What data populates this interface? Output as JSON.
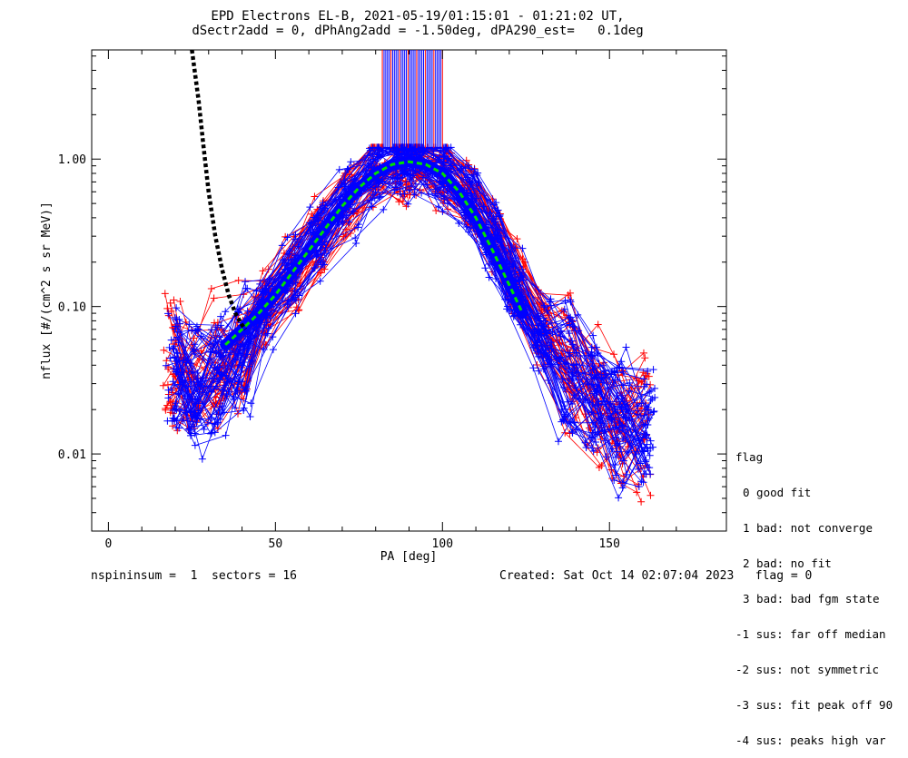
{
  "title_line1": "EPD Electrons EL-B, 2021-05-19/01:15:01 - 01:21:02 UT,",
  "title_line2": "dSectr2add = 0, dPhAng2add = -1.50deg, dPA290_est=   0.1deg",
  "footer": {
    "left": "nspininsum =  1  sectors = 16",
    "right": "Created: Sat Oct 14 02:07:04 2023   flag = 0"
  },
  "legend": {
    "title": "flag",
    "items": [
      "0 good fit",
      "1 bad: not converge",
      "2 bad: no fit",
      "3 bad: bad fgm state",
      "-1 sus: far off median",
      "-2 sus: not symmetric",
      "-3 sus: fit peak off 90",
      "-4 sus: peaks high var"
    ]
  },
  "colors": {
    "red_series": "#ff0000",
    "blue_series": "#0000ff",
    "fit_curve": "#00e000",
    "loss_cone": "#000000"
  },
  "chart_data": {
    "type": "line",
    "xlabel": "PA [deg]",
    "ylabel": "nflux [#/(cm^2 s sr MeV)]",
    "xlim": [
      -5,
      185
    ],
    "ylim": [
      0.003,
      5.5
    ],
    "yscale": "log",
    "xticks": [
      0,
      50,
      100,
      150
    ],
    "yticks": [
      0.01,
      0.1,
      1.0
    ],
    "ytick_labels": [
      "0.01",
      "0.10",
      "1.00"
    ],
    "grid": false,
    "series": [
      {
        "color": "red",
        "x": [
          19,
          25,
          33,
          40,
          47,
          55,
          63,
          72,
          80,
          87,
          90,
          93,
          100,
          108,
          115,
          122,
          130,
          138,
          146,
          153,
          160
        ],
        "y": [
          0.042,
          0.03,
          0.04,
          0.055,
          0.1,
          0.17,
          0.3,
          0.55,
          0.85,
          0.95,
          0.97,
          0.95,
          0.82,
          0.55,
          0.3,
          0.15,
          0.07,
          0.04,
          0.025,
          0.017,
          0.015
        ]
      },
      {
        "color": "blue",
        "x": [
          20,
          26,
          33,
          40,
          47,
          55,
          63,
          72,
          80,
          87,
          90,
          93,
          100,
          108,
          115,
          122,
          130,
          138,
          146,
          153,
          161
        ],
        "y": [
          0.035,
          0.025,
          0.035,
          0.05,
          0.09,
          0.16,
          0.28,
          0.52,
          0.82,
          0.93,
          0.95,
          0.93,
          0.8,
          0.5,
          0.27,
          0.13,
          0.06,
          0.035,
          0.022,
          0.016,
          0.014
        ]
      },
      {
        "color": "green",
        "style": "dashed",
        "x": [
          35,
          40,
          45,
          50,
          55,
          60,
          65,
          70,
          75,
          80,
          85,
          90,
          95,
          100,
          105,
          110,
          115,
          120,
          124
        ],
        "y": [
          0.055,
          0.07,
          0.09,
          0.12,
          0.17,
          0.24,
          0.34,
          0.48,
          0.64,
          0.8,
          0.92,
          0.96,
          0.92,
          0.8,
          0.6,
          0.4,
          0.24,
          0.14,
          0.09
        ]
      },
      {
        "color": "black",
        "style": "dotted",
        "x": [
          25,
          27,
          28.5,
          30,
          32,
          34,
          36,
          38,
          40,
          41
        ],
        "y": [
          5.5,
          2.5,
          1.2,
          0.6,
          0.3,
          0.18,
          0.12,
          0.09,
          0.075,
          0.07
        ]
      }
    ]
  }
}
